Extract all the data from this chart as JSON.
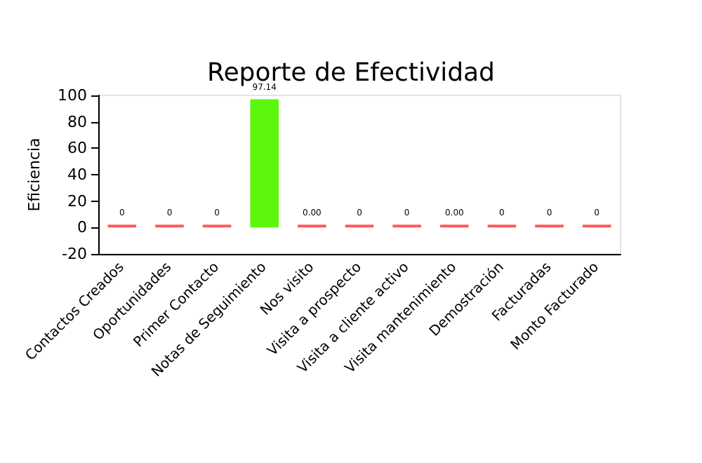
{
  "chart_data": {
    "type": "bar",
    "title": "Reporte de Efectividad",
    "ylabel": "Eficiencia",
    "categories": [
      "Contactos Creados",
      "Oportunidades",
      "Primer Contacto",
      "Notas de Seguimiento",
      "Nos visito",
      "Visita a prospecto",
      "Visita a cliente activo",
      "Visita mantenimiento",
      "Demostración",
      "Facturadas",
      "Monto Facturado"
    ],
    "values": [
      0,
      0,
      0,
      97.14,
      0,
      0,
      0,
      0,
      0,
      0,
      0
    ],
    "value_labels": [
      "0",
      "0",
      "0",
      "97.14",
      "0.00",
      "0",
      "0",
      "0.00",
      "0",
      "0",
      "0"
    ],
    "colors": [
      "#ff5a5a",
      "#ff5a5a",
      "#ff5a5a",
      "#5cf70c",
      "#ff5a5a",
      "#ff5a5a",
      "#ff5a5a",
      "#ff5a5a",
      "#ff5a5a",
      "#ff5a5a",
      "#ff5a5a"
    ],
    "ylim": [
      -20,
      100
    ],
    "yticks": [
      -20,
      0,
      20,
      40,
      60,
      80,
      100
    ],
    "grid": false
  }
}
